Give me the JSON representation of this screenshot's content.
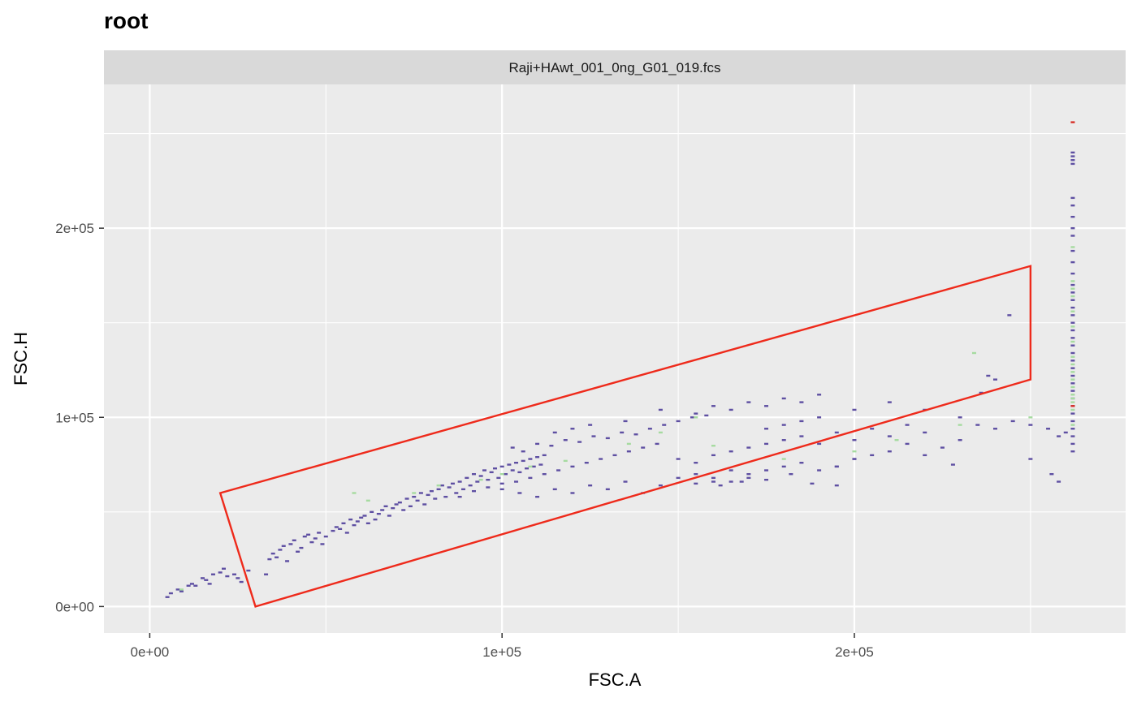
{
  "chart_data": {
    "type": "scatter",
    "title": "root",
    "facet_label": "Raji+HAwt_001_0ng_G01_019.fcs",
    "xlabel": "FSC.A",
    "ylabel": "FSC.H",
    "xlim": [
      -13000,
      277000
    ],
    "ylim": [
      -14000,
      276000
    ],
    "x_ticks": [
      0,
      100000,
      200000
    ],
    "x_tick_labels": [
      "0e+00",
      "1e+05",
      "2e+05"
    ],
    "y_ticks": [
      0,
      100000,
      200000
    ],
    "y_tick_labels": [
      "0e+00",
      "1e+05",
      "2e+05"
    ],
    "grid": true,
    "density_colors": {
      "low": "#5e4fa2",
      "mid": "#a6dba0",
      "high": "#d73027"
    },
    "gate": {
      "color": "#ee2a1b",
      "polygon": [
        [
          20000,
          60000
        ],
        [
          250000,
          180000
        ],
        [
          250000,
          120000
        ],
        [
          30000,
          0
        ]
      ]
    },
    "points": [
      [
        5000,
        5000
      ],
      [
        6000,
        7000
      ],
      [
        8000,
        9000
      ],
      [
        9000,
        8000
      ],
      [
        11000,
        11000
      ],
      [
        12000,
        12000
      ],
      [
        13000,
        11000
      ],
      [
        15000,
        15000
      ],
      [
        16000,
        14000
      ],
      [
        17000,
        12000
      ],
      [
        18000,
        17000
      ],
      [
        20000,
        18000
      ],
      [
        21000,
        20000
      ],
      [
        22000,
        16000
      ],
      [
        24000,
        17000
      ],
      [
        25000,
        15000
      ],
      [
        26000,
        13000
      ],
      [
        28000,
        19000
      ],
      [
        33000,
        17000
      ],
      [
        34000,
        25000
      ],
      [
        35000,
        28000
      ],
      [
        36000,
        26000
      ],
      [
        37000,
        30000
      ],
      [
        38000,
        32000
      ],
      [
        39000,
        24000
      ],
      [
        40000,
        33000
      ],
      [
        41000,
        35000
      ],
      [
        42000,
        29000
      ],
      [
        43000,
        31000
      ],
      [
        44000,
        37000
      ],
      [
        45000,
        38000
      ],
      [
        46000,
        34000
      ],
      [
        47000,
        36000
      ],
      [
        48000,
        39000
      ],
      [
        49000,
        33000
      ],
      [
        50000,
        37000
      ],
      [
        52000,
        40000
      ],
      [
        53000,
        42000
      ],
      [
        54000,
        41000
      ],
      [
        55000,
        44000
      ],
      [
        56000,
        39000
      ],
      [
        57000,
        46000
      ],
      [
        58000,
        43000
      ],
      [
        59000,
        45000
      ],
      [
        60000,
        47000
      ],
      [
        61000,
        48000
      ],
      [
        62000,
        44000
      ],
      [
        63000,
        50000
      ],
      [
        64000,
        46000
      ],
      [
        65000,
        49000
      ],
      [
        66000,
        51000
      ],
      [
        67000,
        53000
      ],
      [
        68000,
        48000
      ],
      [
        69000,
        52000
      ],
      [
        70000,
        54000
      ],
      [
        71000,
        55000
      ],
      [
        72000,
        51000
      ],
      [
        73000,
        57000
      ],
      [
        74000,
        53000
      ],
      [
        75000,
        58000
      ],
      [
        76000,
        56000
      ],
      [
        77000,
        60000
      ],
      [
        78000,
        54000
      ],
      [
        79000,
        59000
      ],
      [
        80000,
        61000
      ],
      [
        81000,
        57000
      ],
      [
        82000,
        62000
      ],
      [
        83000,
        64000
      ],
      [
        84000,
        58000
      ],
      [
        85000,
        63000
      ],
      [
        86000,
        65000
      ],
      [
        87000,
        60000
      ],
      [
        88000,
        66000
      ],
      [
        89000,
        62000
      ],
      [
        90000,
        68000
      ],
      [
        91000,
        64000
      ],
      [
        92000,
        70000
      ],
      [
        93000,
        66000
      ],
      [
        94000,
        69000
      ],
      [
        95000,
        72000
      ],
      [
        96000,
        67000
      ],
      [
        97000,
        71000
      ],
      [
        98000,
        73000
      ],
      [
        99000,
        68000
      ],
      [
        100000,
        74000
      ],
      [
        101000,
        70000
      ],
      [
        102000,
        75000
      ],
      [
        103000,
        72000
      ],
      [
        104000,
        76000
      ],
      [
        105000,
        71000
      ],
      [
        106000,
        77000
      ],
      [
        107000,
        73000
      ],
      [
        108000,
        78000
      ],
      [
        109000,
        74000
      ],
      [
        110000,
        79000
      ],
      [
        111000,
        75000
      ],
      [
        112000,
        80000
      ],
      [
        88000,
        58000
      ],
      [
        92000,
        61000
      ],
      [
        96000,
        63000
      ],
      [
        100000,
        65000
      ],
      [
        104000,
        66000
      ],
      [
        108000,
        68000
      ],
      [
        112000,
        70000
      ],
      [
        116000,
        72000
      ],
      [
        120000,
        74000
      ],
      [
        124000,
        76000
      ],
      [
        128000,
        78000
      ],
      [
        132000,
        80000
      ],
      [
        136000,
        82000
      ],
      [
        140000,
        84000
      ],
      [
        144000,
        86000
      ],
      [
        103000,
        84000
      ],
      [
        106000,
        82000
      ],
      [
        110000,
        86000
      ],
      [
        114000,
        85000
      ],
      [
        118000,
        88000
      ],
      [
        122000,
        87000
      ],
      [
        126000,
        90000
      ],
      [
        130000,
        89000
      ],
      [
        134000,
        92000
      ],
      [
        138000,
        91000
      ],
      [
        142000,
        94000
      ],
      [
        146000,
        96000
      ],
      [
        150000,
        98000
      ],
      [
        154000,
        100000
      ],
      [
        158000,
        101000
      ],
      [
        100000,
        62000
      ],
      [
        105000,
        60000
      ],
      [
        110000,
        58000
      ],
      [
        115000,
        62000
      ],
      [
        120000,
        60000
      ],
      [
        125000,
        64000
      ],
      [
        130000,
        62000
      ],
      [
        135000,
        66000
      ],
      [
        140000,
        60000
      ],
      [
        145000,
        64000
      ],
      [
        150000,
        68000
      ],
      [
        155000,
        70000
      ],
      [
        160000,
        66000
      ],
      [
        165000,
        72000
      ],
      [
        170000,
        68000
      ],
      [
        115000,
        92000
      ],
      [
        120000,
        94000
      ],
      [
        125000,
        96000
      ],
      [
        135000,
        98000
      ],
      [
        145000,
        104000
      ],
      [
        155000,
        102000
      ],
      [
        160000,
        106000
      ],
      [
        165000,
        104000
      ],
      [
        170000,
        108000
      ],
      [
        175000,
        106000
      ],
      [
        180000,
        110000
      ],
      [
        185000,
        108000
      ],
      [
        190000,
        112000
      ],
      [
        150000,
        78000
      ],
      [
        155000,
        76000
      ],
      [
        160000,
        80000
      ],
      [
        165000,
        82000
      ],
      [
        170000,
        84000
      ],
      [
        175000,
        86000
      ],
      [
        180000,
        88000
      ],
      [
        185000,
        90000
      ],
      [
        190000,
        86000
      ],
      [
        195000,
        92000
      ],
      [
        200000,
        88000
      ],
      [
        205000,
        94000
      ],
      [
        210000,
        90000
      ],
      [
        215000,
        96000
      ],
      [
        220000,
        92000
      ],
      [
        160000,
        68000
      ],
      [
        165000,
        66000
      ],
      [
        170000,
        70000
      ],
      [
        175000,
        72000
      ],
      [
        180000,
        74000
      ],
      [
        185000,
        76000
      ],
      [
        190000,
        72000
      ],
      [
        195000,
        74000
      ],
      [
        200000,
        78000
      ],
      [
        205000,
        80000
      ],
      [
        210000,
        82000
      ],
      [
        215000,
        86000
      ],
      [
        220000,
        80000
      ],
      [
        225000,
        84000
      ],
      [
        230000,
        88000
      ],
      [
        175000,
        94000
      ],
      [
        180000,
        96000
      ],
      [
        185000,
        98000
      ],
      [
        190000,
        100000
      ],
      [
        200000,
        104000
      ],
      [
        210000,
        108000
      ],
      [
        220000,
        104000
      ],
      [
        230000,
        100000
      ],
      [
        235000,
        96000
      ],
      [
        240000,
        94000
      ],
      [
        245000,
        98000
      ],
      [
        250000,
        96000
      ],
      [
        255000,
        94000
      ],
      [
        258000,
        90000
      ],
      [
        260000,
        92000
      ],
      [
        155000,
        65000
      ],
      [
        162000,
        64000
      ],
      [
        168000,
        66000
      ],
      [
        175000,
        67000
      ],
      [
        182000,
        70000
      ],
      [
        188000,
        65000
      ],
      [
        195000,
        64000
      ],
      [
        195000,
        74000
      ],
      [
        200000,
        78000
      ],
      [
        228000,
        75000
      ],
      [
        236000,
        113000
      ],
      [
        238000,
        122000
      ],
      [
        240000,
        120000
      ],
      [
        244000,
        154000
      ],
      [
        250000,
        78000
      ],
      [
        256000,
        70000
      ],
      [
        258000,
        66000
      ],
      [
        262000,
        82000
      ],
      [
        262000,
        86000
      ],
      [
        262000,
        90000
      ],
      [
        262000,
        94000
      ],
      [
        262000,
        98000
      ],
      [
        262000,
        102000
      ],
      [
        262000,
        106000
      ],
      [
        262000,
        110000
      ],
      [
        262000,
        114000
      ],
      [
        262000,
        118000
      ],
      [
        262000,
        122000
      ],
      [
        262000,
        126000
      ],
      [
        262000,
        130000
      ],
      [
        262000,
        134000
      ],
      [
        262000,
        138000
      ],
      [
        262000,
        142000
      ],
      [
        262000,
        146000
      ],
      [
        262000,
        150000
      ],
      [
        262000,
        154000
      ],
      [
        262000,
        158000
      ],
      [
        262000,
        162000
      ],
      [
        262000,
        166000
      ],
      [
        262000,
        170000
      ],
      [
        262000,
        176000
      ],
      [
        262000,
        182000
      ],
      [
        262000,
        188000
      ],
      [
        262000,
        196000
      ],
      [
        262000,
        200000
      ],
      [
        262000,
        206000
      ],
      [
        262000,
        212000
      ],
      [
        262000,
        216000
      ],
      [
        262000,
        234000
      ],
      [
        262000,
        236000
      ],
      [
        262000,
        238000
      ],
      [
        262000,
        240000
      ]
    ],
    "mid_points": [
      [
        9000,
        9000
      ],
      [
        58000,
        60000
      ],
      [
        62000,
        56000
      ],
      [
        75000,
        60000
      ],
      [
        82000,
        64000
      ],
      [
        94000,
        67000
      ],
      [
        100000,
        70000
      ],
      [
        108000,
        74000
      ],
      [
        118000,
        77000
      ],
      [
        136000,
        86000
      ],
      [
        145000,
        92000
      ],
      [
        155000,
        100000
      ],
      [
        160000,
        85000
      ],
      [
        180000,
        78000
      ],
      [
        200000,
        82000
      ],
      [
        212000,
        88000
      ],
      [
        230000,
        96000
      ],
      [
        250000,
        100000
      ],
      [
        234000,
        134000
      ],
      [
        262000,
        96000
      ],
      [
        262000,
        104000
      ],
      [
        262000,
        108000
      ],
      [
        262000,
        110000
      ],
      [
        262000,
        112000
      ],
      [
        262000,
        116000
      ],
      [
        262000,
        120000
      ],
      [
        262000,
        124000
      ],
      [
        262000,
        128000
      ],
      [
        262000,
        132000
      ],
      [
        262000,
        140000
      ],
      [
        262000,
        148000
      ],
      [
        262000,
        156000
      ],
      [
        262000,
        164000
      ],
      [
        262000,
        168000
      ],
      [
        262000,
        172000
      ],
      [
        262000,
        190000
      ]
    ],
    "high_points": [
      [
        262000,
        106000
      ],
      [
        262000,
        256000
      ]
    ]
  }
}
